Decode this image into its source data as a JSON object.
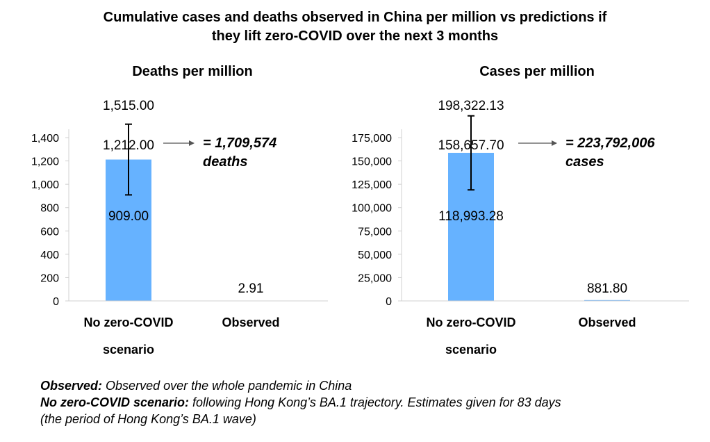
{
  "title_line1": "Cumulative cases and deaths observed in China per million vs predictions if",
  "title_line2": "they lift zero-COVID over the next 3 months",
  "chart_data": [
    {
      "type": "bar",
      "title": "Deaths per million",
      "categories": [
        "No zero-COVID scenario",
        "Observed"
      ],
      "category_lines": [
        [
          "No zero-COVID",
          "scenario"
        ],
        [
          "Observed"
        ]
      ],
      "values": [
        1212.0,
        2.91
      ],
      "value_labels": [
        "1,212.00",
        "2.91"
      ],
      "error_bar": {
        "category": "No zero-COVID scenario",
        "low": 909.0,
        "high": 1515.0,
        "low_label": "909.00",
        "high_label": "1,515.00"
      },
      "ylim": [
        0,
        1400
      ],
      "yticks": [
        0,
        200,
        400,
        600,
        800,
        1000,
        1200,
        1400
      ],
      "ytick_labels": [
        "0",
        "200",
        "400",
        "600",
        "800",
        "1,000",
        "1,200",
        "1,400"
      ],
      "annotation_line1": "= 1,709,574",
      "annotation_line2": "deaths",
      "bar_color": "#66B2FF"
    },
    {
      "type": "bar",
      "title": "Cases per million",
      "categories": [
        "No zero-COVID scenario",
        "Observed"
      ],
      "category_lines": [
        [
          "No zero-COVID",
          "scenario"
        ],
        [
          "Observed"
        ]
      ],
      "values": [
        158657.7,
        881.8
      ],
      "value_labels": [
        "158,657.70",
        "881.80"
      ],
      "error_bar": {
        "category": "No zero-COVID scenario",
        "low": 118993.28,
        "high": 198322.13,
        "low_label": "118,993.28",
        "high_label": "198,322.13"
      },
      "ylim": [
        0,
        175000
      ],
      "yticks": [
        0,
        25000,
        50000,
        75000,
        100000,
        125000,
        150000,
        175000
      ],
      "ytick_labels": [
        "0",
        "25,000",
        "50,000",
        "75,000",
        "100,000",
        "125,000",
        "150,000",
        "175,000"
      ],
      "annotation_line1": "= 223,792,006",
      "annotation_line2": "cases",
      "bar_color": "#66B2FF"
    }
  ],
  "footer": {
    "line1_bold": "Observed:",
    "line1_text": " Observed over the whole pandemic in China",
    "line2_bold": "No zero-COVID scenario:",
    "line2_text": " following Hong Kong’s BA.1 trajectory. Estimates given for 83 days",
    "line3_text": "(the period of Hong Kong’s BA.1 wave)"
  }
}
